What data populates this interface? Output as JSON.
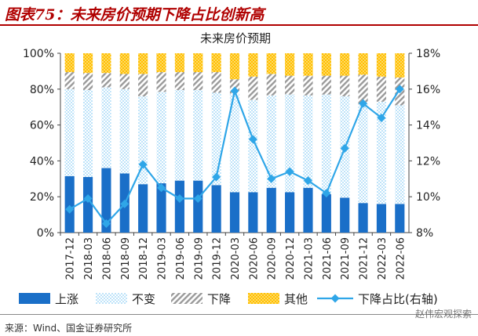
{
  "header": {
    "figure_title": "图表75：未来房价预期下降占比创新高"
  },
  "footer": {
    "source": "来源：Wind、国金证券研究所",
    "watermark": "赵伟宏观探索"
  },
  "colors": {
    "title": "#b00000",
    "up": "#1a6fc8",
    "unchanged": "#cfe8f8",
    "down": "#a6a6a6",
    "other": "#ffc000",
    "line": "#2fa6e8"
  },
  "chart_data": {
    "type": "bar",
    "title": "未来房价预期",
    "categories": [
      "2017-12",
      "2018-03",
      "2018-06",
      "2018-09",
      "2018-12",
      "2019-03",
      "2019-06",
      "2019-09",
      "2019-12",
      "2020-03",
      "2020-06",
      "2020-09",
      "2020-12",
      "2021-03",
      "2021-06",
      "2021-09",
      "2021-12",
      "2022-03",
      "2022-06"
    ],
    "stacked": true,
    "y_left": {
      "ticks": [
        "0%",
        "20%",
        "40%",
        "60%",
        "80%",
        "100%"
      ],
      "ylim": [
        0,
        100
      ]
    },
    "y_right": {
      "ticks": [
        "8%",
        "10%",
        "12%",
        "14%",
        "16%",
        "18%"
      ],
      "ylim": [
        8,
        18
      ]
    },
    "series": [
      {
        "name": "上涨",
        "kind": "solid",
        "values": [
          31.5,
          31,
          36,
          33,
          27,
          27.5,
          29,
          29,
          26.5,
          22.5,
          22.5,
          25,
          22.5,
          25,
          21.5,
          19.5,
          16.5,
          16,
          16
        ]
      },
      {
        "name": "不变",
        "kind": "dotted",
        "values": [
          48.5,
          48.5,
          45,
          47,
          49,
          51,
          50.5,
          50.5,
          51.5,
          55,
          51.5,
          51.5,
          54.5,
          51.5,
          55.5,
          56.5,
          55,
          57,
          55
        ]
      },
      {
        "name": "下降",
        "kind": "hatched",
        "values": [
          9.5,
          9.5,
          8,
          8.5,
          12.5,
          11,
          10,
          10,
          11.5,
          8,
          13,
          12,
          10.5,
          11,
          10.5,
          11.5,
          16.5,
          14,
          15.5
        ]
      },
      {
        "name": "其他",
        "kind": "dotted",
        "values": [
          10.5,
          11,
          11,
          11.5,
          11.5,
          10.5,
          10.5,
          10.5,
          10.5,
          14.5,
          13,
          11.5,
          12.5,
          12.5,
          12.5,
          12.5,
          12,
          13,
          13.5
        ]
      },
      {
        "name": "下降占比(右轴)",
        "kind": "line",
        "axis": "right",
        "values": [
          9.3,
          9.9,
          8.5,
          9.6,
          11.8,
          10.5,
          9.9,
          9.9,
          11.1,
          15.9,
          13.2,
          11.0,
          11.4,
          10.9,
          10.2,
          12.7,
          15.2,
          14.4,
          16.0
        ]
      }
    ]
  }
}
